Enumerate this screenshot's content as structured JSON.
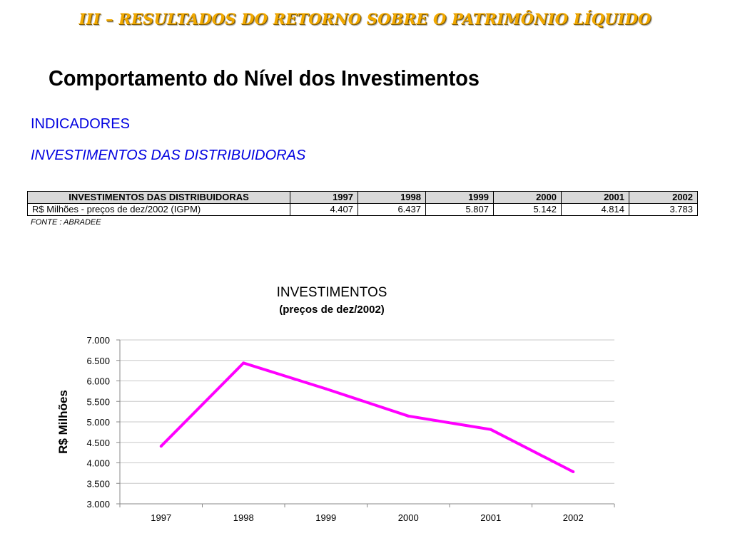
{
  "section_title": "III – RESULTADOS DO RETORNO SOBRE O PATRIMÔNIO LÍQUIDO",
  "main_title": "Comportamento do Nível dos Investimentos",
  "indicators_heading": "INDICADORES",
  "indicators_subheading": "INVESTIMENTOS DAS DISTRIBUIDORAS",
  "table": {
    "header": [
      "INVESTIMENTOS DAS DISTRIBUIDORAS",
      "1997",
      "1998",
      "1999",
      "2000",
      "2001",
      "2002"
    ],
    "row": [
      "R$ Milhões - preços de dez/2002 (IGPM)",
      "4.407",
      "6.437",
      "5.807",
      "5.142",
      "4.814",
      "3.783"
    ]
  },
  "source": "FONTE : ABRADEE",
  "chart_data": {
    "type": "line",
    "title": "INVESTIMENTOS",
    "subtitle": "(preços de dez/2002)",
    "xlabel": "",
    "ylabel": "R$ Milhões",
    "categories": [
      "1997",
      "1998",
      "1999",
      "2000",
      "2001",
      "2002"
    ],
    "series": [
      {
        "values": [
          4407,
          6437,
          5807,
          5142,
          4814,
          3783
        ],
        "color": "#FF00FF"
      }
    ],
    "ylim": [
      3000,
      7000
    ],
    "y_ticks": [
      "3.000",
      "3.500",
      "4.000",
      "4.500",
      "5.000",
      "5.500",
      "6.000",
      "6.500",
      "7.000"
    ],
    "grid": true,
    "legend": "none"
  }
}
